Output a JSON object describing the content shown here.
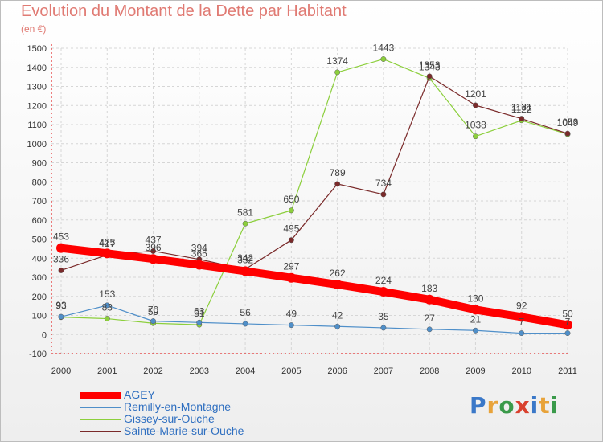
{
  "header": {
    "title": "Evolution du Montant de la Dette par Habitant",
    "subtitle": "(en €)"
  },
  "logo": {
    "text": "Proxiti",
    "colors": [
      "#3a78c8",
      "#e8a33a",
      "#3a9a4a",
      "#d9412e",
      "#3a78c8",
      "#e8a33a",
      "#3a9a4a"
    ]
  },
  "chart_data": {
    "type": "line",
    "title": "Evolution du Montant de la Dette par Habitant",
    "subtitle": "(en €)",
    "xlabel": "",
    "ylabel": "",
    "categories": [
      "2000",
      "2001",
      "2002",
      "2003",
      "2004",
      "2005",
      "2006",
      "2007",
      "2008",
      "2009",
      "2010",
      "2011"
    ],
    "yticks": [
      -100,
      0,
      100,
      200,
      300,
      400,
      500,
      600,
      700,
      800,
      900,
      1000,
      1100,
      1200,
      1300,
      1400,
      1500
    ],
    "ylim": [
      -100,
      1500
    ],
    "grid": true,
    "legend_position": "bottom-left",
    "series": [
      {
        "name": "AGEY",
        "color": "#ff0000",
        "values": [
          453,
          425,
          396,
          365,
          332,
          297,
          262,
          224,
          183,
          130,
          92,
          50
        ],
        "labels": [
          "453",
          "425",
          "396",
          "365",
          "332",
          "297",
          "262",
          "224",
          "183",
          "130",
          "92",
          "50"
        ]
      },
      {
        "name": "Remilly-en-Montagne",
        "color": "#4f8fc9",
        "values": [
          93,
          153,
          70,
          63,
          56,
          49,
          42,
          35,
          27,
          21,
          7,
          7
        ],
        "labels": [
          "93",
          "153",
          "70",
          "63",
          "56",
          "49",
          "42",
          "35",
          "27",
          "21",
          "7",
          "7"
        ]
      },
      {
        "name": "Gissey-sur-Ouche",
        "color": "#8ccf3c",
        "values": [
          91,
          83,
          59,
          51,
          581,
          650,
          1374,
          1443,
          1343,
          1038,
          1122,
          1049
        ],
        "labels": [
          "91",
          "83",
          "59",
          "51",
          "581",
          "650",
          "1374",
          "1443",
          "1343",
          "1038",
          "1122",
          "1049"
        ]
      },
      {
        "name": "Sainte-Marie-sur-Ouche",
        "color": "#7a2a2a",
        "values": [
          336,
          417,
          437,
          394,
          342,
          495,
          789,
          734,
          1353,
          1201,
          1131,
          1053
        ],
        "labels": [
          "336",
          "417",
          "437",
          "394",
          "342",
          "495",
          "789",
          "734",
          "1353",
          "1201",
          "1131",
          "1053"
        ]
      }
    ]
  }
}
